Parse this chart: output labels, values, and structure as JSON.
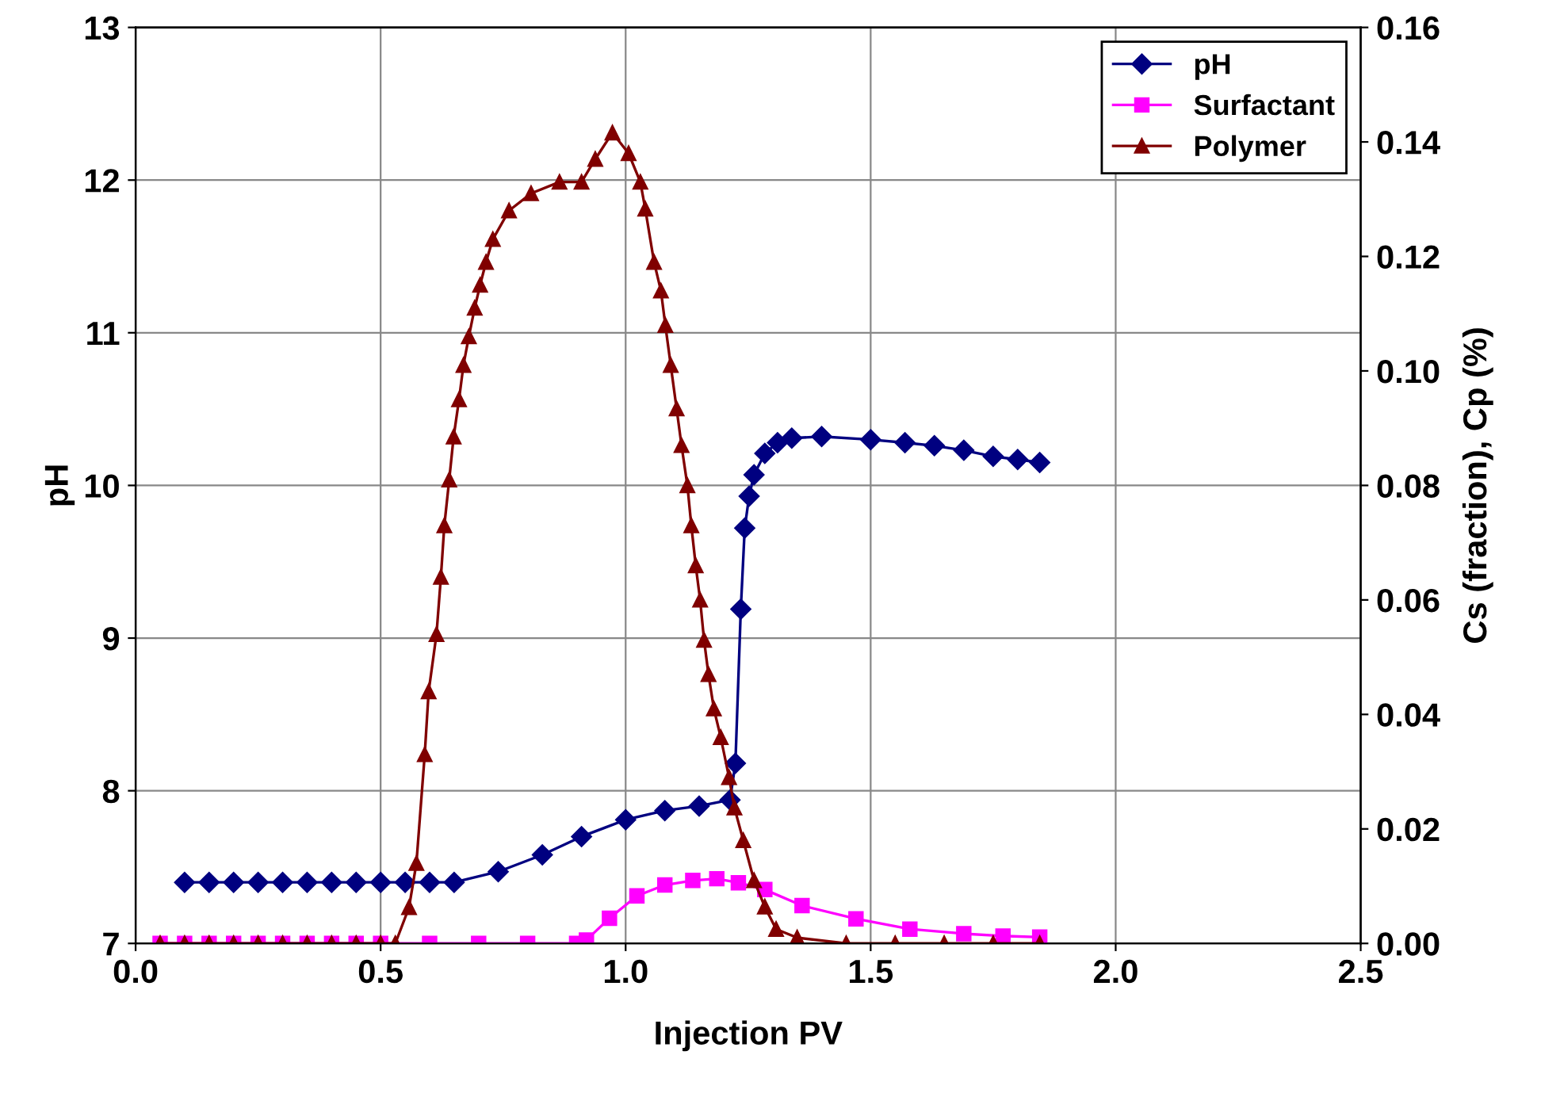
{
  "chart_data": {
    "type": "line",
    "xlabel": "Injection PV",
    "ylabel": "pH",
    "y2label": "Cs (fraction), Cp (%)",
    "xlim": [
      0.0,
      2.5
    ],
    "xticks": [
      {
        "value": 0,
        "label": "0.0"
      },
      {
        "value": 0.5,
        "label": "0.5"
      },
      {
        "value": 1,
        "label": "1.0"
      },
      {
        "value": 1.5,
        "label": "1.5"
      },
      {
        "value": 2,
        "label": "2.0"
      },
      {
        "value": 2.5,
        "label": "2.5"
      }
    ],
    "ylim": [
      7,
      13
    ],
    "yticks": [
      7,
      8,
      9,
      10,
      11,
      12,
      13
    ],
    "y2lim": [
      0,
      0.16
    ],
    "y2ticks": [
      {
        "value": 0,
        "label": "0.00"
      },
      {
        "value": 0.02,
        "label": "0.02"
      },
      {
        "value": 0.04,
        "label": "0.04"
      },
      {
        "value": 0.06,
        "label": "0.06"
      },
      {
        "value": 0.08,
        "label": "0.08"
      },
      {
        "value": 0.1,
        "label": "0.10"
      },
      {
        "value": 0.12,
        "label": "0.12"
      },
      {
        "value": 0.14,
        "label": "0.14"
      },
      {
        "value": 0.16,
        "label": "0.16"
      }
    ],
    "grid": true,
    "legend": "top right",
    "series": [
      {
        "name": "pH",
        "color": "#000080",
        "marker": "diamond",
        "x": [
          0.1,
          0.15,
          0.2,
          0.25,
          0.3,
          0.35,
          0.4,
          0.45,
          0.5,
          0.55,
          0.6,
          0.65,
          0.74,
          0.83,
          0.91,
          1.0,
          1.08,
          1.15,
          1.213,
          1.224,
          1.235,
          1.243,
          1.252,
          1.262,
          1.284,
          1.31,
          1.339,
          1.4,
          1.5,
          1.57,
          1.63,
          1.69,
          1.75,
          1.8,
          1.845
        ],
        "values": [
          7.4,
          7.4,
          7.4,
          7.4,
          7.4,
          7.4,
          7.4,
          7.4,
          7.4,
          7.4,
          7.4,
          7.4,
          7.47,
          7.58,
          7.7,
          7.81,
          7.87,
          7.9,
          7.94,
          8.18,
          9.19,
          9.72,
          9.93,
          10.07,
          10.21,
          10.28,
          10.31,
          10.32,
          10.3,
          10.28,
          10.26,
          10.23,
          10.19,
          10.17,
          10.15
        ]
      },
      {
        "name": "Surfactant",
        "color": "#ff00ff",
        "marker": "square",
        "axis": "y2",
        "x": [
          0.05,
          0.1,
          0.15,
          0.2,
          0.25,
          0.3,
          0.35,
          0.4,
          0.45,
          0.5,
          0.6,
          0.7,
          0.8,
          0.9,
          0.92,
          0.967,
          1.023,
          1.08,
          1.137,
          1.186,
          1.23,
          1.284,
          1.36,
          1.47,
          1.58,
          1.69,
          1.77,
          1.845
        ],
        "values": [
          0,
          0,
          0,
          0,
          0,
          0,
          0,
          0,
          0,
          0,
          0,
          0,
          0,
          0,
          0.0006,
          0.0044,
          0.0083,
          0.0102,
          0.011,
          0.0113,
          0.0106,
          0.0094,
          0.0066,
          0.0043,
          0.0025,
          0.0017,
          0.0013,
          0.0011
        ]
      },
      {
        "name": "Polymer",
        "color": "#800000",
        "marker": "triangle",
        "axis": "y2",
        "x": [
          0.05,
          0.1,
          0.15,
          0.2,
          0.25,
          0.3,
          0.35,
          0.4,
          0.45,
          0.5,
          0.53,
          0.558,
          0.573,
          0.59,
          0.598,
          0.614,
          0.623,
          0.63,
          0.64,
          0.649,
          0.66,
          0.669,
          0.68,
          0.692,
          0.703,
          0.715,
          0.729,
          0.762,
          0.807,
          0.865,
          0.91,
          0.938,
          0.973,
          1.006,
          1.03,
          1.04,
          1.058,
          1.072,
          1.081,
          1.092,
          1.104,
          1.114,
          1.126,
          1.134,
          1.143,
          1.152,
          1.16,
          1.169,
          1.18,
          1.194,
          1.211,
          1.222,
          1.24,
          1.262,
          1.284,
          1.307,
          1.35,
          1.45,
          1.55,
          1.65,
          1.75,
          1.845
        ],
        "values": [
          0,
          0,
          0,
          0,
          0,
          0,
          0,
          0,
          0,
          0,
          0,
          0.0063,
          0.014,
          0.033,
          0.044,
          0.054,
          0.064,
          0.073,
          0.081,
          0.0885,
          0.095,
          0.101,
          0.106,
          0.111,
          0.115,
          0.119,
          0.123,
          0.128,
          0.131,
          0.133,
          0.133,
          0.137,
          0.1416,
          0.138,
          0.133,
          0.1283,
          0.119,
          0.114,
          0.108,
          0.101,
          0.0934,
          0.087,
          0.08,
          0.073,
          0.066,
          0.06,
          0.053,
          0.047,
          0.041,
          0.036,
          0.029,
          0.0237,
          0.018,
          0.011,
          0.0064,
          0.0025,
          0.001,
          0,
          0,
          0,
          0,
          0
        ]
      }
    ]
  }
}
